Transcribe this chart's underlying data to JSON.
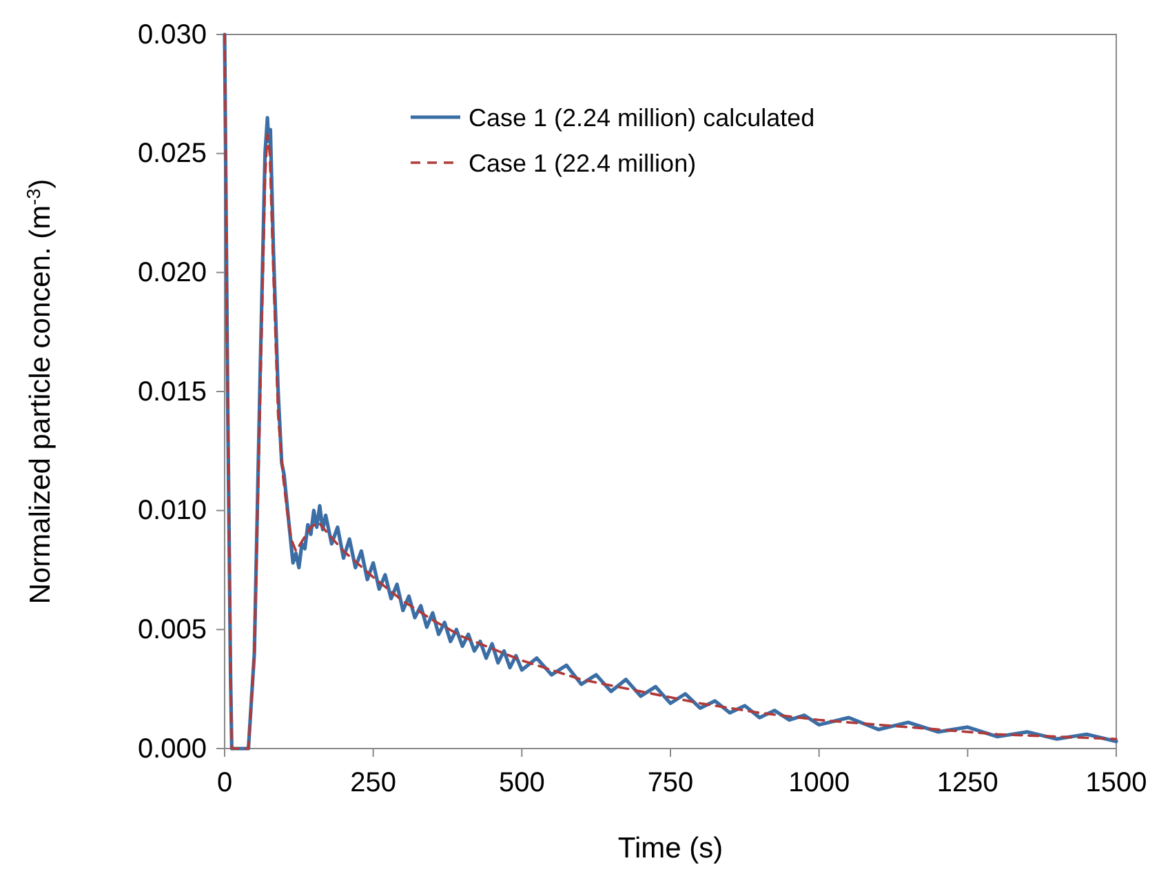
{
  "chart_data": {
    "type": "line",
    "xlabel": "Time (s)",
    "ylabel": "Normalized particle concen. (m$^{-3}$)",
    "xlim": [
      0,
      1500
    ],
    "xticks": [
      0,
      250,
      500,
      750,
      1000,
      1250,
      1500
    ],
    "ylim": [
      0,
      0.03
    ],
    "yticks": [
      {
        "value": 0,
        "label": "0.000"
      },
      {
        "value": 0.005,
        "label": "0.005"
      },
      {
        "value": 0.01,
        "label": "0.010"
      },
      {
        "value": 0.015,
        "label": "0.015"
      },
      {
        "value": 0.02,
        "label": "0.020"
      },
      {
        "value": 0.025,
        "label": "0.025"
      },
      {
        "value": 0.03,
        "label": "0.030"
      }
    ],
    "grid": false,
    "legend": "top",
    "marker": "none",
    "series": [
      {
        "name": "Case 1 (2.24 million) calculated",
        "color": "#3b6ea5",
        "line_style": "solid",
        "x": [
          0,
          5,
          10,
          12,
          40,
          50,
          60,
          68,
          72,
          74,
          77,
          82,
          90,
          96,
          100,
          108,
          115,
          120,
          125,
          130,
          135,
          140,
          145,
          150,
          155,
          160,
          165,
          170,
          180,
          190,
          200,
          210,
          220,
          230,
          240,
          250,
          260,
          270,
          280,
          290,
          300,
          310,
          320,
          330,
          340,
          350,
          360,
          370,
          380,
          390,
          400,
          410,
          420,
          430,
          440,
          450,
          460,
          470,
          480,
          490,
          500,
          525,
          550,
          575,
          600,
          625,
          650,
          675,
          700,
          725,
          750,
          775,
          800,
          825,
          850,
          875,
          900,
          925,
          950,
          975,
          1000,
          1050,
          1100,
          1150,
          1200,
          1250,
          1300,
          1350,
          1400,
          1450,
          1500
        ],
        "values": [
          0.03,
          0.015,
          0.003,
          0,
          0,
          0.004,
          0.016,
          0.025,
          0.0265,
          0.0255,
          0.026,
          0.021,
          0.015,
          0.012,
          0.0115,
          0.0095,
          0.0078,
          0.0082,
          0.0076,
          0.0086,
          0.0084,
          0.0094,
          0.009,
          0.01,
          0.0093,
          0.0102,
          0.0092,
          0.0098,
          0.0086,
          0.0093,
          0.008,
          0.0088,
          0.0076,
          0.0083,
          0.0071,
          0.0078,
          0.0067,
          0.0073,
          0.0063,
          0.0069,
          0.0058,
          0.0064,
          0.0055,
          0.006,
          0.0051,
          0.0057,
          0.0048,
          0.0053,
          0.0045,
          0.005,
          0.0043,
          0.0048,
          0.0041,
          0.0045,
          0.0038,
          0.0044,
          0.0036,
          0.0041,
          0.0034,
          0.0039,
          0.0033,
          0.0038,
          0.0031,
          0.0035,
          0.0027,
          0.0031,
          0.0024,
          0.0029,
          0.0022,
          0.0026,
          0.0019,
          0.0023,
          0.0017,
          0.002,
          0.0015,
          0.0018,
          0.0013,
          0.0016,
          0.0012,
          0.0014,
          0.001,
          0.0013,
          0.0008,
          0.0011,
          0.0007,
          0.0009,
          0.0005,
          0.0007,
          0.0004,
          0.0006,
          0.0003
        ]
      },
      {
        "name": "Case 1 (22.4 million)",
        "color": "#b03a3a",
        "line_style": "dashed",
        "x": [
          0,
          5,
          10,
          12,
          40,
          50,
          60,
          68,
          72,
          76,
          82,
          90,
          98,
          105,
          112,
          120,
          130,
          145,
          158,
          175,
          200,
          250,
          300,
          350,
          400,
          450,
          500,
          600,
          700,
          800,
          900,
          1000,
          1100,
          1200,
          1300,
          1400,
          1500
        ],
        "values": [
          0.03,
          0.015,
          0.003,
          0,
          0,
          0.004,
          0.015,
          0.024,
          0.0258,
          0.025,
          0.02,
          0.014,
          0.0115,
          0.01,
          0.0088,
          0.0083,
          0.0087,
          0.0093,
          0.0095,
          0.009,
          0.0083,
          0.0072,
          0.0062,
          0.0054,
          0.0047,
          0.0042,
          0.0037,
          0.0029,
          0.0024,
          0.0019,
          0.0015,
          0.0012,
          0.001,
          0.0008,
          0.0006,
          0.0005,
          0.0004
        ]
      }
    ]
  }
}
